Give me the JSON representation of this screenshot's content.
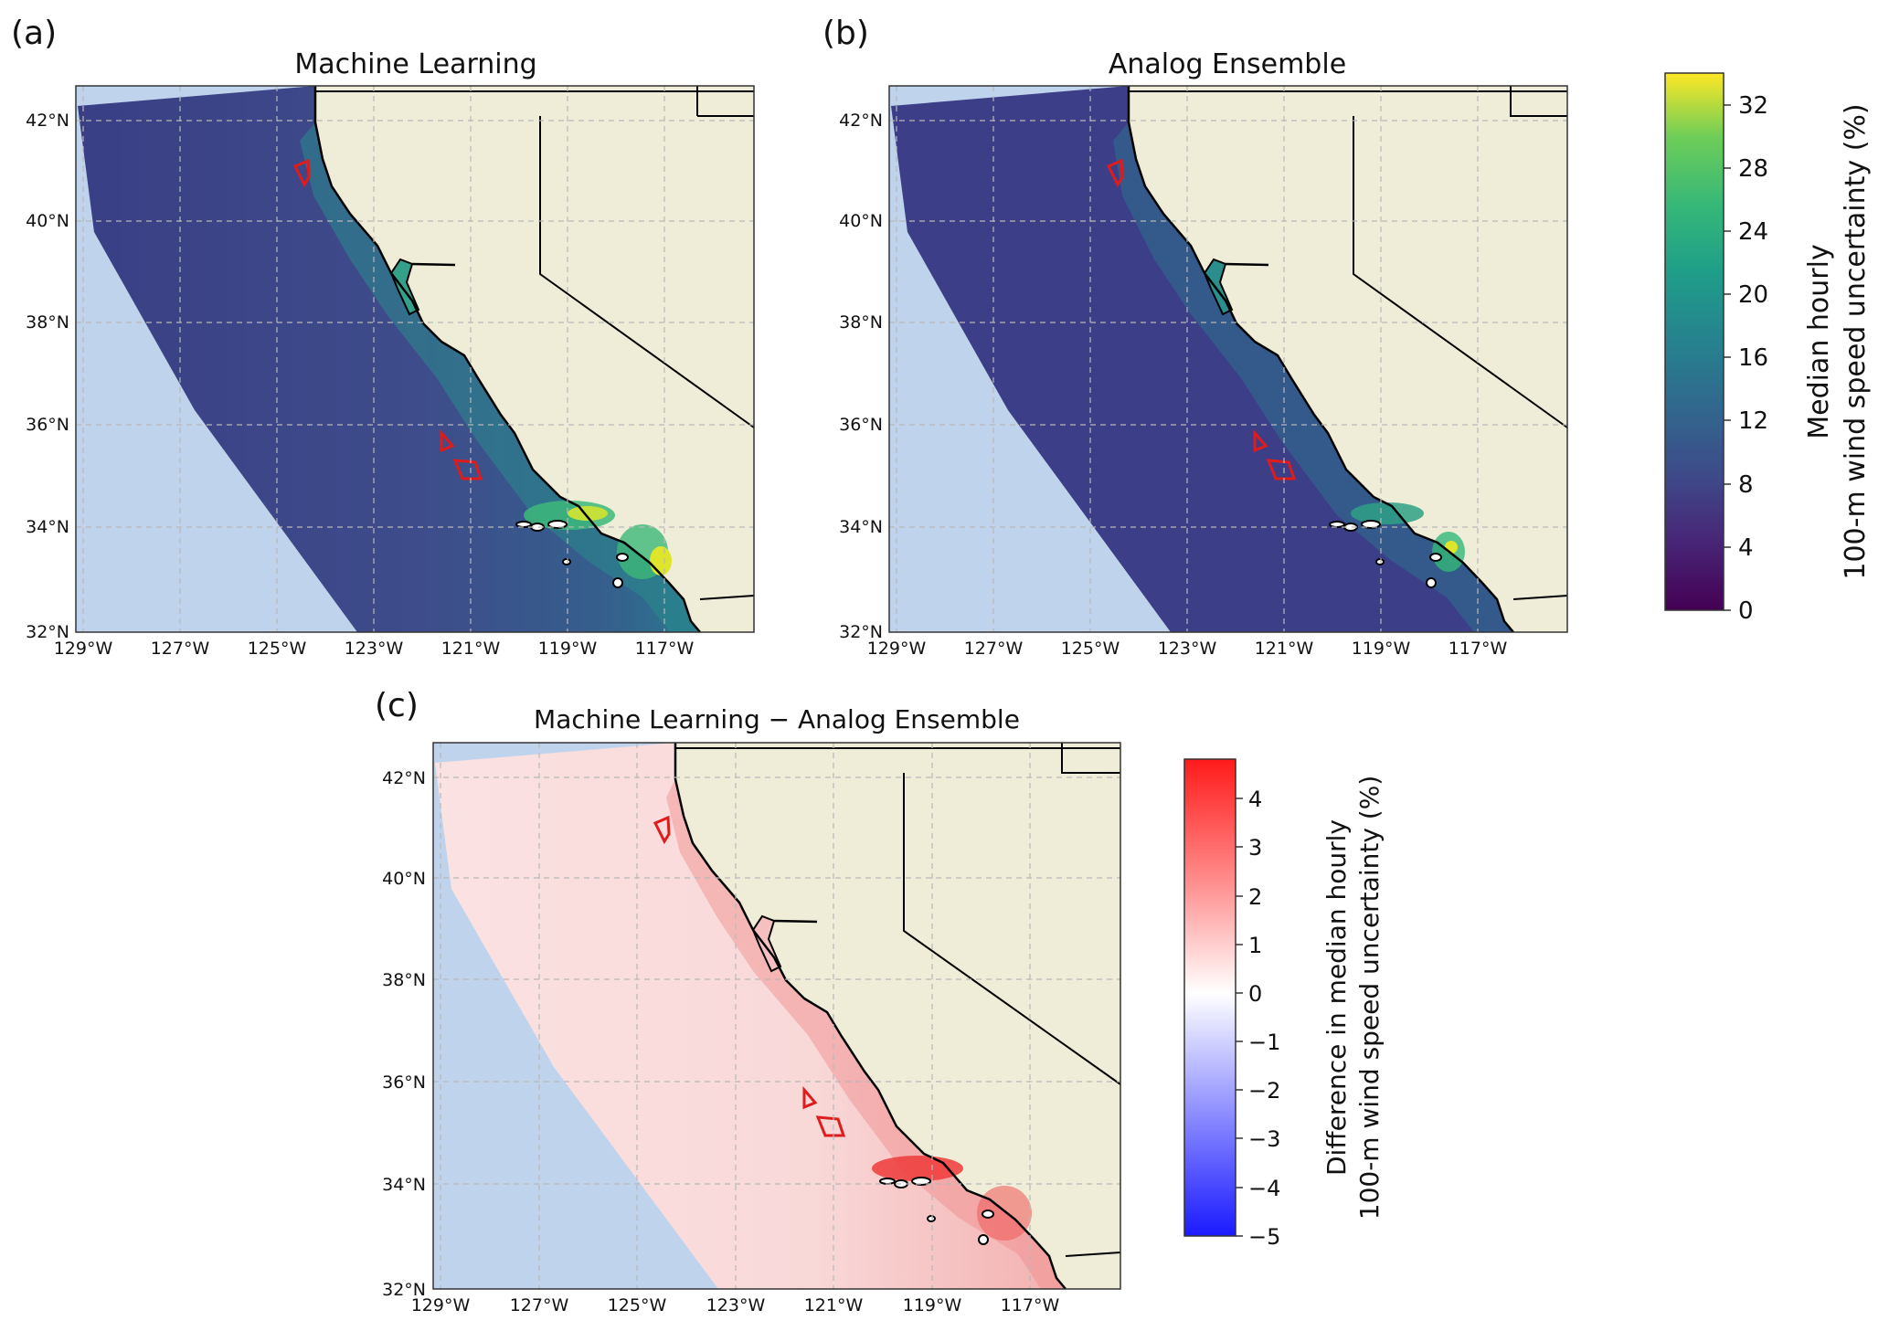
{
  "panels": [
    {
      "id": "a",
      "label": "(a)",
      "title": "Machine Learning"
    },
    {
      "id": "b",
      "label": "(b)",
      "title": "Analog Ensemble"
    },
    {
      "id": "c",
      "label": "(c)",
      "title": "Machine Learning − Analog Ensemble"
    }
  ],
  "axes": {
    "lat_ticks": [
      "42°N",
      "40°N",
      "38°N",
      "36°N",
      "34°N",
      "32°N"
    ],
    "lon_ticks": [
      "129°W",
      "127°W",
      "125°W",
      "123°W",
      "121°W",
      "119°W",
      "117°W"
    ]
  },
  "colorbars": {
    "viridis": {
      "label_line1": "Median hourly",
      "label_line2": "100-m wind speed uncertainty (%)",
      "ticks": [
        "32",
        "28",
        "24",
        "20",
        "16",
        "12",
        "8",
        "4",
        "0"
      ],
      "range": [
        0,
        34
      ]
    },
    "diverging": {
      "label_line1": "Difference in median hourly",
      "label_line2": "100-m wind speed uncertainty (%)",
      "ticks": [
        "4",
        "3",
        "2",
        "1",
        "0",
        "−1",
        "−2",
        "−3",
        "−4",
        "−5"
      ],
      "range": [
        -5,
        4.8
      ]
    }
  },
  "colors": {
    "land": "#efedd8",
    "ocean": "#c0d3ec",
    "low_uncertainty": "#3c4a8c",
    "high_uncertainty": "#dfe52a",
    "difference_positive": "#f8d4d4",
    "difference_strong": "#ee3030",
    "wind_area_outline": "#e01b1b"
  }
}
